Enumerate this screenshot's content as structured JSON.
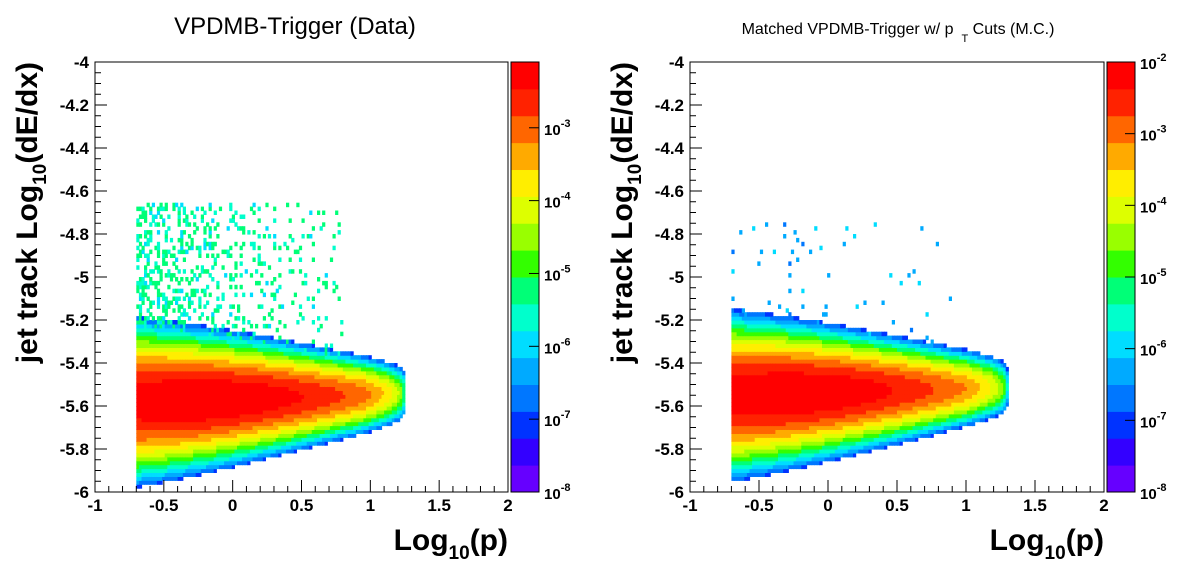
{
  "chart_data": [
    {
      "type": "heatmap",
      "title": "VPDMB-Trigger (Data)",
      "xlabel": {
        "base": "Log",
        "sub": "10",
        "rest": "(p)"
      },
      "ylabel": {
        "pre": "jet track Log",
        "sub": "10",
        "rest": "(dE/dx)"
      },
      "xlim": [
        -1,
        2
      ],
      "ylim": [
        -6,
        -4
      ],
      "x_ticks": [
        "-1",
        "-0.5",
        "0",
        "0.5",
        "1",
        "1.5",
        "2"
      ],
      "y_ticks": [
        "-4",
        "-4.2",
        "-4.4",
        "-4.6",
        "-4.8",
        "-5",
        "-5.2",
        "-5.4",
        "-5.6",
        "-5.8",
        "-6"
      ],
      "z_scale": "log",
      "zlim": [
        1e-08,
        0.008
      ],
      "colorbar_ticks": [
        {
          "base": "10",
          "exp": "-3",
          "value": 0.001
        },
        {
          "base": "10",
          "exp": "-4",
          "value": 0.0001
        },
        {
          "base": "10",
          "exp": "-5",
          "value": 1e-05
        },
        {
          "base": "10",
          "exp": "-6",
          "value": 1e-06
        },
        {
          "base": "10",
          "exp": "-7",
          "value": 1e-07
        },
        {
          "base": "10",
          "exp": "-8",
          "value": 1e-08
        }
      ],
      "distribution": {
        "band_center_y": -5.58,
        "band_x_range": [
          -0.7,
          1.25
        ],
        "peak_x": -0.2,
        "peak_density": 0.008,
        "sparse_upper_region": {
          "x_range": [
            -0.7,
            0.8
          ],
          "y_range": [
            -5.4,
            -4.65
          ]
        }
      }
    },
    {
      "type": "heatmap",
      "title": "Matched VPDMB-Trigger w/ p",
      "title_sub": "T",
      "title_rest": " Cuts (M.C.)",
      "xlabel": {
        "base": "Log",
        "sub": "10",
        "rest": "(p)"
      },
      "ylabel": {
        "pre": "jet track Log",
        "sub": "10",
        "rest": "(dE/dx)"
      },
      "xlim": [
        -1,
        2
      ],
      "ylim": [
        -6,
        -4
      ],
      "x_ticks": [
        "-1",
        "-0.5",
        "0",
        "0.5",
        "1",
        "1.5",
        "2"
      ],
      "y_ticks": [
        "-4",
        "-4.2",
        "-4.4",
        "-4.6",
        "-4.8",
        "-5",
        "-5.2",
        "-5.4",
        "-5.6",
        "-5.8",
        "-6"
      ],
      "z_scale": "log",
      "zlim": [
        1e-08,
        0.01
      ],
      "colorbar_ticks": [
        {
          "base": "10",
          "exp": "-2",
          "value": 0.01
        },
        {
          "base": "10",
          "exp": "-3",
          "value": 0.001
        },
        {
          "base": "10",
          "exp": "-4",
          "value": 0.0001
        },
        {
          "base": "10",
          "exp": "-5",
          "value": 1e-05
        },
        {
          "base": "10",
          "exp": "-6",
          "value": 1e-06
        },
        {
          "base": "10",
          "exp": "-7",
          "value": 1e-07
        },
        {
          "base": "10",
          "exp": "-8",
          "value": 1e-08
        }
      ],
      "distribution": {
        "band_center_y": -5.55,
        "band_x_range": [
          -0.7,
          1.3
        ],
        "peak_x": -0.25,
        "peak_density": 0.01,
        "sparse_upper_region": {
          "x_range": [
            -0.7,
            1.0
          ],
          "y_range": [
            -5.4,
            -4.75
          ]
        }
      }
    }
  ],
  "palette": [
    "#6600ff",
    "#3300ff",
    "#0033ff",
    "#0077ff",
    "#00aaff",
    "#00ddff",
    "#00ffcc",
    "#00ff77",
    "#33ff00",
    "#99ff00",
    "#ddff00",
    "#ffee00",
    "#ffaa00",
    "#ff6600",
    "#ff2200",
    "#ff0000"
  ]
}
